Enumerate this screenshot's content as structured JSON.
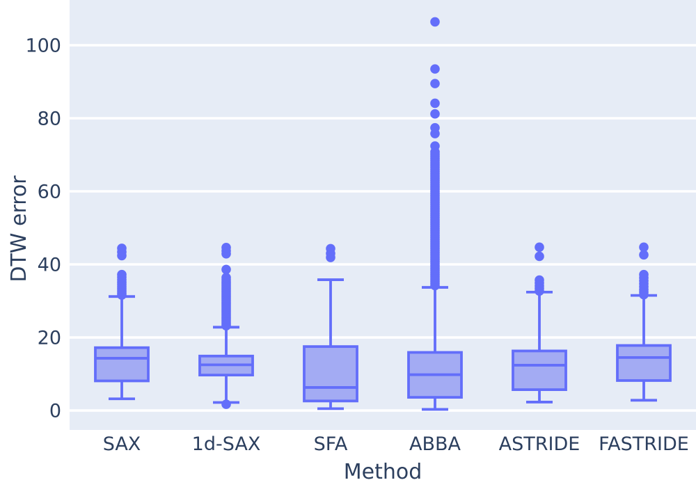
{
  "figure": {
    "colors": {
      "paper_bg": "#ffffff",
      "plot_bg": "#e6ecf6",
      "grid": "#ffffff",
      "box_line": "#636efa",
      "box_fill": "#a3abf3",
      "marker": "#636efa",
      "text": "#2c3f5e"
    }
  },
  "chart_data": {
    "type": "box",
    "title": "",
    "xlabel": "Method",
    "ylabel": "DTW error",
    "categories": [
      "SAX",
      "1d-SAX",
      "SFA",
      "ABBA",
      "ASTRIDE",
      "FASTRIDE"
    ],
    "y_ticks": [
      0,
      20,
      40,
      60,
      80,
      100
    ],
    "ylim": [
      -5.33,
      112.38
    ],
    "grid": true,
    "legend": "none",
    "boxes": [
      {
        "label": "SAX",
        "whislo": 3.2,
        "q1": 8.1,
        "med": 14.3,
        "q3": 17.2,
        "whishi": 31.2,
        "outliers": [
          31.6,
          32.1,
          32.7,
          33.3,
          33.9,
          34.5,
          35.1,
          35.8,
          36.5,
          37.2,
          42.4,
          43.4,
          44.4
        ]
      },
      {
        "label": "1d-SAX",
        "whislo": 2.2,
        "q1": 9.7,
        "med": 12.5,
        "q3": 14.9,
        "whishi": 22.8,
        "outliers": [
          1.7,
          23.2,
          23.7,
          24.2,
          24.7,
          25.2,
          25.7,
          26.2,
          26.7,
          27.2,
          27.7,
          28.2,
          28.7,
          29.2,
          29.7,
          30.2,
          30.7,
          31.2,
          31.7,
          32.2,
          32.7,
          33.2,
          33.7,
          34.2,
          34.7,
          35.2,
          35.8,
          36.4,
          38.6,
          42.9,
          43.7,
          44.6
        ]
      },
      {
        "label": "SFA",
        "whislo": 0.5,
        "q1": 2.6,
        "med": 6.3,
        "q3": 17.5,
        "whishi": 35.8,
        "outliers": [
          41.9,
          43.0,
          44.3
        ]
      },
      {
        "label": "ABBA",
        "whislo": 0.3,
        "q1": 3.6,
        "med": 9.8,
        "q3": 15.9,
        "whishi": 33.7,
        "outliers": [
          34.2,
          34.8,
          35.4,
          36.0,
          36.6,
          37.2,
          37.8,
          38.4,
          39.0,
          39.6,
          40.2,
          40.8,
          41.4,
          42.0,
          42.6,
          43.2,
          43.8,
          44.4,
          45.0,
          45.6,
          46.2,
          46.8,
          47.4,
          48.0,
          48.6,
          49.2,
          49.8,
          50.4,
          51.0,
          51.6,
          52.2,
          52.8,
          53.4,
          54.0,
          54.6,
          55.2,
          55.8,
          56.4,
          57.0,
          57.6,
          58.2,
          58.8,
          59.4,
          60.0,
          60.6,
          61.2,
          61.8,
          62.4,
          63.0,
          63.6,
          64.2,
          64.8,
          65.4,
          66.0,
          66.6,
          67.2,
          67.8,
          68.4,
          69.0,
          69.6,
          70.2,
          70.8,
          72.4,
          75.8,
          77.4,
          81.2,
          84.1,
          89.5,
          93.5,
          106.4
        ]
      },
      {
        "label": "ASTRIDE",
        "whislo": 2.3,
        "q1": 5.7,
        "med": 12.4,
        "q3": 16.3,
        "whishi": 32.4,
        "outliers": [
          32.7,
          33.4,
          34.1,
          34.9,
          35.7,
          42.2,
          44.7
        ]
      },
      {
        "label": "FASTRIDE",
        "whislo": 2.8,
        "q1": 8.2,
        "med": 14.5,
        "q3": 17.8,
        "whishi": 31.5,
        "outliers": [
          31.7,
          32.4,
          33.1,
          33.9,
          34.7,
          35.5,
          36.3,
          37.2,
          42.6,
          44.7
        ]
      }
    ]
  }
}
